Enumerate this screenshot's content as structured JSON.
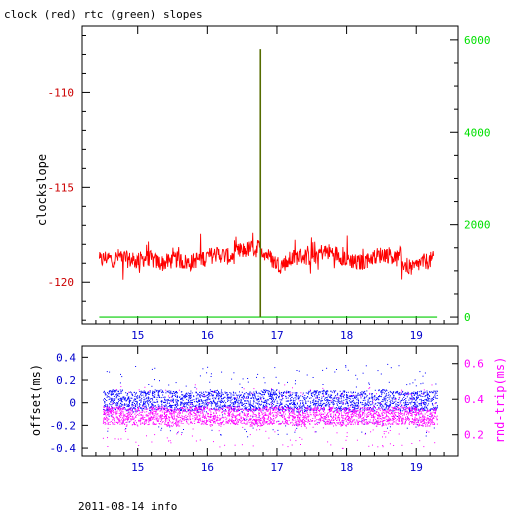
{
  "title": "clock (red) rtc (green) slopes",
  "footer": "2011-08-14 info",
  "colors": {
    "clock": "#ff0000",
    "rtc_axis": "#00e000",
    "rtc_line": "#00cc00",
    "spike": "#556b00",
    "offset": "#0000ff",
    "rtrip": "#ff00ff",
    "black": "#000000"
  },
  "chart_data": [
    {
      "type": "line",
      "title": "clock (red) rtc (green) slopes",
      "ylabel": "clockslope",
      "x_ticks": [
        "15",
        "16",
        "17",
        "18",
        "19"
      ],
      "x_tick_values": [
        15,
        16,
        17,
        18,
        19
      ],
      "xlim": [
        14.2,
        19.6
      ],
      "ylim": [
        -122.2,
        -106.5
      ],
      "y_ticks": [
        "-110",
        "-115",
        "-120"
      ],
      "y_tick_values": [
        -110,
        -115,
        -120
      ],
      "y2_ticks": [
        "6000",
        "4000",
        "2000",
        "0"
      ],
      "y2_tick_values": [
        6000,
        4000,
        2000,
        0
      ],
      "y2lim": [
        -150,
        6300
      ],
      "series": [
        {
          "name": "clock",
          "x": [
            14.45,
            14.55,
            14.65,
            14.75,
            14.85,
            14.95,
            15.05,
            15.15,
            15.25,
            15.35,
            15.45,
            15.55,
            15.65,
            15.75,
            15.85,
            15.95,
            16.05,
            16.15,
            16.25,
            16.35,
            16.45,
            16.55,
            16.65,
            16.75,
            16.85,
            16.95,
            17.05,
            17.15,
            17.25,
            17.35,
            17.45,
            17.55,
            17.65,
            17.75,
            17.85,
            17.95,
            18.05,
            18.15,
            18.25,
            18.35,
            18.45,
            18.55,
            18.65,
            18.75,
            18.85,
            18.95,
            19.05,
            19.15,
            19.25
          ],
          "y": [
            -118.9,
            -118.7,
            -118.8,
            -118.6,
            -118.8,
            -118.9,
            -118.8,
            -118.7,
            -118.9,
            -119.0,
            -118.9,
            -118.8,
            -118.9,
            -119.0,
            -118.8,
            -118.7,
            -118.6,
            -118.5,
            -118.6,
            -118.7,
            -118.4,
            -118.3,
            -118.2,
            -118.2,
            -118.5,
            -118.9,
            -119.1,
            -118.9,
            -118.7,
            -118.6,
            -118.7,
            -118.5,
            -118.4,
            -118.4,
            -118.5,
            -118.7,
            -118.8,
            -119.0,
            -118.9,
            -118.7,
            -118.6,
            -118.5,
            -118.6,
            -118.8,
            -119.1,
            -119.3,
            -119.0,
            -118.9,
            -118.8
          ]
        },
        {
          "name": "rtc",
          "axis": "right",
          "x": [
            14.45,
            19.3
          ],
          "y": [
            0,
            0
          ]
        },
        {
          "name": "rtc-spike",
          "axis": "right",
          "x": [
            16.76,
            16.76
          ],
          "y": [
            0,
            5800
          ]
        }
      ]
    },
    {
      "type": "scatter",
      "ylabel": "offset(ms)",
      "y2label": "rnd-trip(ms)",
      "x_ticks": [
        "15",
        "16",
        "17",
        "18",
        "19"
      ],
      "x_tick_values": [
        15,
        16,
        17,
        18,
        19
      ],
      "xlim": [
        14.2,
        19.6
      ],
      "ylim": [
        -0.47,
        0.5
      ],
      "y_ticks": [
        "0.4",
        "0.2",
        "0",
        "-0.2",
        "-0.4"
      ],
      "y_tick_values": [
        0.4,
        0.2,
        0,
        -0.2,
        -0.4
      ],
      "y2_ticks": [
        "0.6",
        "0.4",
        "0.2"
      ],
      "y2_tick_values": [
        0.6,
        0.4,
        0.2
      ],
      "y2lim": [
        0.08,
        0.7
      ],
      "series": [
        {
          "name": "offset",
          "axis": "left",
          "x": [
            14.5,
            14.7,
            14.9,
            15.1,
            15.3,
            15.5,
            15.7,
            15.9,
            16.1,
            16.3,
            16.5,
            16.7,
            16.9,
            17.1,
            17.3,
            17.5,
            17.7,
            17.9,
            18.1,
            18.3,
            18.5,
            18.7,
            18.9,
            19.1,
            19.3
          ],
          "y": [
            0.02,
            0.03,
            0.01,
            0.02,
            0.03,
            0.02,
            0.02,
            0.01,
            0.03,
            0.02,
            0.01,
            0.02,
            0.03,
            0.02,
            0.01,
            0.02,
            0.03,
            0.02,
            0.01,
            0.02,
            0.03,
            0.02,
            0.01,
            0.02,
            0.02
          ],
          "spread": 0.09
        },
        {
          "name": "rnd-trip",
          "axis": "right",
          "x": [
            14.5,
            14.7,
            14.9,
            15.1,
            15.3,
            15.5,
            15.7,
            15.9,
            16.1,
            16.3,
            16.5,
            16.7,
            16.9,
            17.1,
            17.3,
            17.5,
            17.7,
            17.9,
            18.1,
            18.3,
            18.5,
            18.7,
            18.9,
            19.1,
            19.3
          ],
          "y": [
            0.31,
            0.31,
            0.3,
            0.31,
            0.31,
            0.3,
            0.31,
            0.31,
            0.3,
            0.31,
            0.31,
            0.3,
            0.31,
            0.31,
            0.3,
            0.31,
            0.31,
            0.3,
            0.31,
            0.31,
            0.3,
            0.31,
            0.31,
            0.3,
            0.31
          ],
          "spread": 0.05
        }
      ]
    }
  ]
}
